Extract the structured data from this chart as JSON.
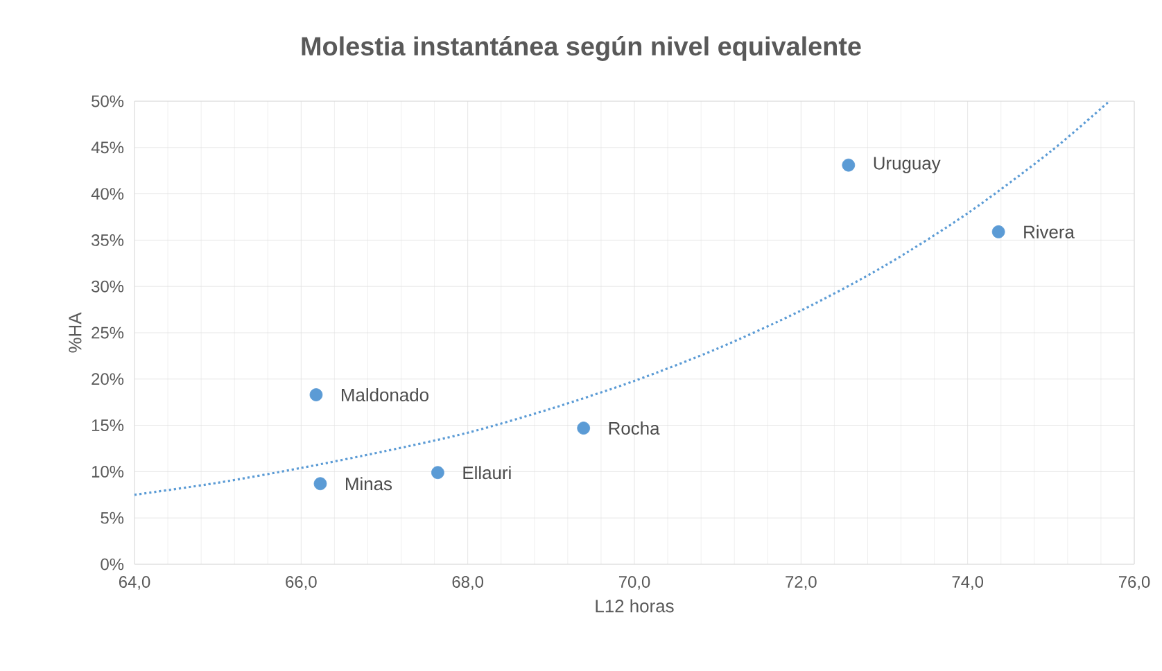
{
  "chart_data": {
    "type": "scatter",
    "title": "Molestia instantánea según nivel equivalente",
    "xlabel": "L12 horas",
    "ylabel": "%HA",
    "xlim": [
      64,
      76
    ],
    "xticks": [
      {
        "value": 64,
        "label": "64,0"
      },
      {
        "value": 66,
        "label": "66,0"
      },
      {
        "value": 68,
        "label": "68,0"
      },
      {
        "value": 70,
        "label": "70,0"
      },
      {
        "value": 72,
        "label": "72,0"
      },
      {
        "value": 74,
        "label": "74,0"
      },
      {
        "value": 76,
        "label": "76,0"
      }
    ],
    "ylim": [
      0,
      50
    ],
    "yticks": [
      {
        "value": 0,
        "label": "0%"
      },
      {
        "value": 5,
        "label": "5%"
      },
      {
        "value": 10,
        "label": "10%"
      },
      {
        "value": 15,
        "label": "15%"
      },
      {
        "value": 20,
        "label": "20%"
      },
      {
        "value": 25,
        "label": "25%"
      },
      {
        "value": 30,
        "label": "30%"
      },
      {
        "value": 35,
        "label": "35%"
      },
      {
        "value": 40,
        "label": "40%"
      },
      {
        "value": 45,
        "label": "45%"
      },
      {
        "value": 50,
        "label": "50%"
      }
    ],
    "grid": true,
    "marker": "circle",
    "series": [
      {
        "color": "#5b9bd5",
        "x": [
          72.57,
          74.37,
          66.18,
          69.39,
          67.64,
          66.23
        ],
        "values": [
          43.1,
          35.9,
          18.3,
          14.7,
          9.9,
          8.7
        ]
      },
      {
        "type": "line",
        "color": "#5b9bd5",
        "line_style": "dotted",
        "marker": "none",
        "x": [
          64,
          65,
          66,
          67,
          68,
          69,
          70,
          71,
          72,
          73,
          74,
          75,
          75.7
        ],
        "values": [
          7.5,
          8.8,
          10.4,
          12.2,
          14.2,
          16.8,
          19.8,
          23.3,
          27.4,
          32.2,
          37.9,
          44.6,
          50
        ]
      }
    ],
    "annotations": [
      {
        "text": "Uruguay",
        "x": 72.57,
        "y": 43.1
      },
      {
        "text": "Rivera",
        "x": 74.37,
        "y": 35.9
      },
      {
        "text": "Maldonado",
        "x": 66.18,
        "y": 18.3
      },
      {
        "text": "Rocha",
        "x": 69.39,
        "y": 14.7
      },
      {
        "text": "Ellauri",
        "x": 67.64,
        "y": 9.9
      },
      {
        "text": "Minas",
        "x": 66.23,
        "y": 8.7
      }
    ]
  }
}
